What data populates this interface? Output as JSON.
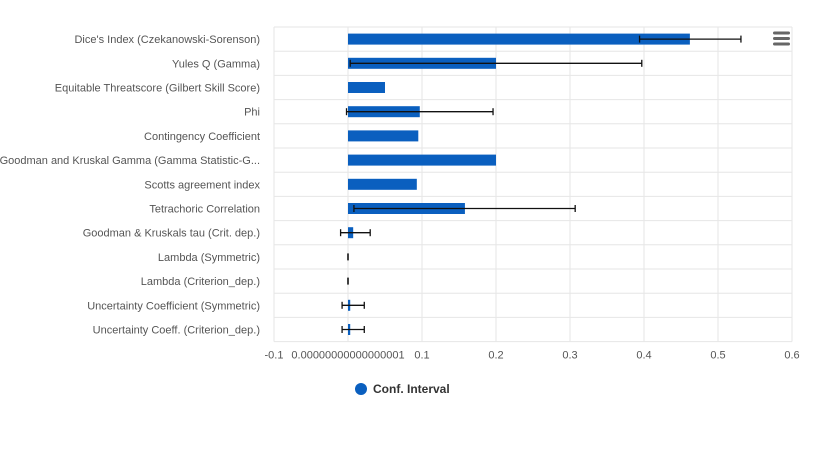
{
  "chart_data": {
    "type": "bar",
    "orientation": "horizontal",
    "categories": [
      "Dice's Index (Czekanowski-Sorenson)",
      "Yules Q (Gamma)",
      "Equitable Threatscore (Gilbert Skill Score)",
      "Phi",
      "Contingency Coefficient",
      "Goodman and Kruskal Gamma (Gamma Statistic-G...",
      "Scotts agreement index",
      "Tetrachoric Correlation",
      "Goodman & Kruskals tau (Crit. dep.)",
      "Lambda (Symmetric)",
      "Lambda (Criterion_dep.)",
      "Uncertainty Coefficient (Symmetric)",
      "Uncertainty Coeff. (Criterion_dep.)"
    ],
    "series": [
      {
        "name": "Conf. Interval",
        "color": "#0a5fbf",
        "values": [
          0.462,
          0.2,
          0.05,
          0.097,
          0.095,
          0.2,
          0.093,
          0.158,
          0.007,
          0.0,
          0.0,
          0.003,
          0.003
        ],
        "error_low": [
          0.394,
          0.003,
          null,
          -0.002,
          null,
          null,
          null,
          0.008,
          -0.01,
          0.0,
          0.0,
          -0.008,
          -0.008
        ],
        "error_high": [
          0.531,
          0.397,
          null,
          0.196,
          null,
          null,
          null,
          0.307,
          0.03,
          0.0,
          0.0,
          0.022,
          0.022
        ]
      }
    ],
    "x_ticks": [
      "-0.1",
      "0.00000000000000001",
      "0.1",
      "0.2",
      "0.3",
      "0.4",
      "0.5",
      "0.6"
    ],
    "x_tick_values": [
      -0.1,
      0.0,
      0.1,
      0.2,
      0.3,
      0.4,
      0.5,
      0.6
    ],
    "xlim": [
      -0.1,
      0.6
    ],
    "title": "",
    "xlabel": "",
    "ylabel": "",
    "grid": true,
    "legend": "bottom-left",
    "grid_color": "#e6e6e6"
  },
  "menu_icon": "hamburger-menu-icon",
  "menu_color": "#666666"
}
